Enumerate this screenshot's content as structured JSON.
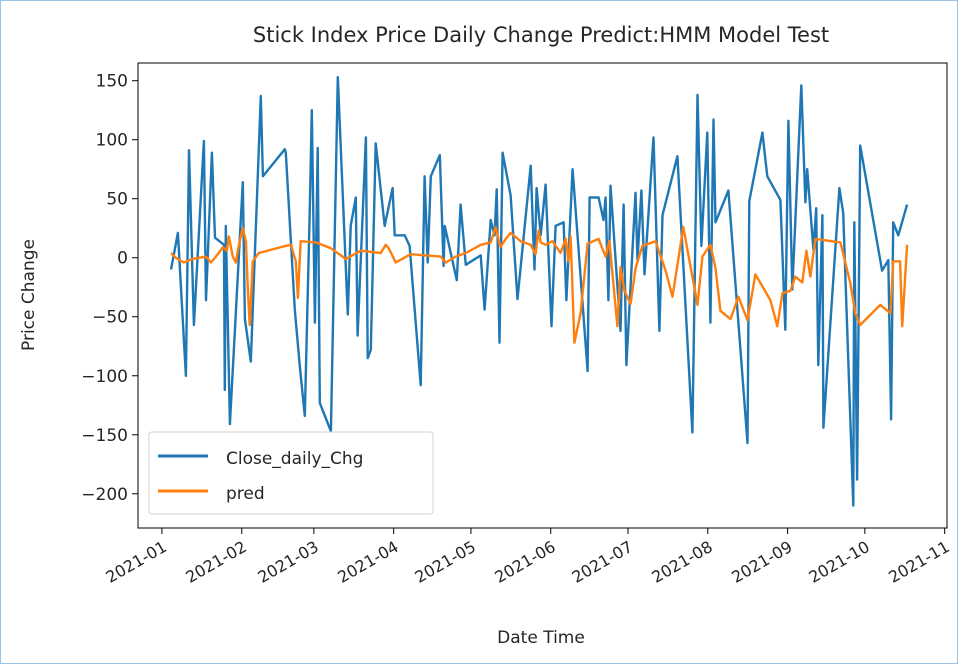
{
  "chart_data": {
    "type": "line",
    "title": "Stick Index Price Daily Change Predict:HMM Model Test",
    "xlabel": "Date Time",
    "ylabel": "Price Change",
    "x_units": "days since 2021-01-01",
    "xlim": [
      -9.3,
      304.9
    ],
    "ylim": [
      -229,
      165
    ],
    "x_ticks": [
      {
        "value": 0,
        "label": "2021-01"
      },
      {
        "value": 31,
        "label": "2021-02"
      },
      {
        "value": 59,
        "label": "2021-03"
      },
      {
        "value": 90,
        "label": "2021-04"
      },
      {
        "value": 120,
        "label": "2021-05"
      },
      {
        "value": 151,
        "label": "2021-06"
      },
      {
        "value": 181,
        "label": "2021-07"
      },
      {
        "value": 212,
        "label": "2021-08"
      },
      {
        "value": 243,
        "label": "2021-09"
      },
      {
        "value": 273,
        "label": "2021-10"
      },
      {
        "value": 304,
        "label": "2021-11"
      }
    ],
    "y_ticks": [
      {
        "value": 150,
        "label": "150"
      },
      {
        "value": 100,
        "label": "100"
      },
      {
        "value": 50,
        "label": "50"
      },
      {
        "value": 0,
        "label": "0"
      },
      {
        "value": -50,
        "label": "−50"
      },
      {
        "value": -100,
        "label": "−100"
      },
      {
        "value": -150,
        "label": "−150"
      },
      {
        "value": -200,
        "label": "−200"
      }
    ],
    "grid": false,
    "legend_position": "lower-left",
    "series": [
      {
        "name": "Close_daily_Chg",
        "color": "#1f77b4",
        "points": [
          [
            3.5,
            -10
          ],
          [
            6.2,
            21
          ],
          [
            9.3,
            -100
          ],
          [
            10.5,
            91
          ],
          [
            12.4,
            -57
          ],
          [
            16.3,
            99
          ],
          [
            17.1,
            -36
          ],
          [
            19.4,
            89
          ],
          [
            20.6,
            17
          ],
          [
            24.1,
            11
          ],
          [
            24.4,
            -112
          ],
          [
            24.8,
            27
          ],
          [
            26.4,
            -141
          ],
          [
            31.4,
            64
          ],
          [
            32.2,
            -52
          ],
          [
            34.5,
            -88
          ],
          [
            38.4,
            137
          ],
          [
            39.2,
            69
          ],
          [
            47.7,
            92
          ],
          [
            48.1,
            89
          ],
          [
            51.6,
            -44
          ],
          [
            53.5,
            -91
          ],
          [
            55.5,
            -134
          ],
          [
            57.4,
            38
          ],
          [
            58.2,
            125
          ],
          [
            59.4,
            -55
          ],
          [
            60.5,
            93
          ],
          [
            61.3,
            -123
          ],
          [
            65.6,
            -147
          ],
          [
            68.3,
            153
          ],
          [
            72.2,
            -48
          ],
          [
            73.3,
            27
          ],
          [
            75.3,
            51
          ],
          [
            76.0,
            -66
          ],
          [
            79.2,
            102
          ],
          [
            79.9,
            -85
          ],
          [
            81.1,
            -78
          ],
          [
            83.0,
            97
          ],
          [
            86.5,
            27
          ],
          [
            89.6,
            59
          ],
          [
            90.4,
            19
          ],
          [
            94.3,
            19
          ],
          [
            96.2,
            10
          ],
          [
            100.5,
            -108
          ],
          [
            102.0,
            69
          ],
          [
            103.2,
            -4
          ],
          [
            104.4,
            69
          ],
          [
            107.9,
            87
          ],
          [
            109.4,
            -7
          ],
          [
            109.8,
            27
          ],
          [
            114.5,
            -19
          ],
          [
            116.0,
            45
          ],
          [
            118.0,
            -6
          ],
          [
            123.8,
            2
          ],
          [
            125.3,
            -44
          ],
          [
            127.7,
            32
          ],
          [
            129.2,
            19
          ],
          [
            130.0,
            58
          ],
          [
            131.1,
            -72
          ],
          [
            132.3,
            89
          ],
          [
            135.4,
            53
          ],
          [
            138.1,
            -35
          ],
          [
            143.2,
            78
          ],
          [
            144.7,
            -10
          ],
          [
            145.5,
            59
          ],
          [
            147.1,
            19
          ],
          [
            149.0,
            62
          ],
          [
            151.3,
            -58
          ],
          [
            152.9,
            27
          ],
          [
            156.0,
            30
          ],
          [
            157.1,
            -36
          ],
          [
            159.5,
            75
          ],
          [
            165.3,
            -96
          ],
          [
            166.1,
            51
          ],
          [
            169.6,
            51
          ],
          [
            171.5,
            32
          ],
          [
            172.3,
            51
          ],
          [
            173.4,
            -36
          ],
          [
            174.2,
            61
          ],
          [
            178.1,
            -62
          ],
          [
            179.3,
            45
          ],
          [
            180.4,
            -91
          ],
          [
            183.9,
            55
          ],
          [
            184.7,
            -2
          ],
          [
            186.2,
            57
          ],
          [
            187.4,
            -14
          ],
          [
            190.9,
            102
          ],
          [
            193.2,
            -62
          ],
          [
            194.4,
            36
          ],
          [
            200.2,
            86
          ],
          [
            206.0,
            -148
          ],
          [
            208.0,
            138
          ],
          [
            209.5,
            10
          ],
          [
            211.8,
            106
          ],
          [
            213.0,
            -55
          ],
          [
            214.2,
            117
          ],
          [
            215.0,
            30
          ],
          [
            220.0,
            57
          ],
          [
            227.4,
            -157
          ],
          [
            228.1,
            48
          ],
          [
            233.2,
            106
          ],
          [
            235.1,
            69
          ],
          [
            240.2,
            49
          ],
          [
            242.1,
            -61
          ],
          [
            243.3,
            116
          ],
          [
            244.8,
            -27
          ],
          [
            248.3,
            146
          ],
          [
            249.9,
            47
          ],
          [
            250.6,
            75
          ],
          [
            253.0,
            7
          ],
          [
            254.1,
            42
          ],
          [
            254.9,
            -91
          ],
          [
            256.5,
            36
          ],
          [
            256.9,
            -144
          ],
          [
            263.1,
            59
          ],
          [
            264.6,
            38
          ],
          [
            268.5,
            -210
          ],
          [
            268.9,
            30
          ],
          [
            270.0,
            -188
          ],
          [
            271.2,
            95
          ],
          [
            279.7,
            -11
          ],
          [
            282.1,
            -2
          ],
          [
            283.2,
            -137
          ],
          [
            284.0,
            30
          ],
          [
            286.0,
            19
          ],
          [
            289.4,
            45
          ]
        ]
      },
      {
        "name": "pred",
        "color": "#ff7f0e",
        "points": [
          [
            3.5,
            4
          ],
          [
            5.4,
            0
          ],
          [
            8.5,
            -4
          ],
          [
            12,
            -1
          ],
          [
            17.1,
            1
          ],
          [
            19,
            -4
          ],
          [
            21,
            1
          ],
          [
            23.7,
            9
          ],
          [
            25.2,
            6
          ],
          [
            26,
            18
          ],
          [
            27.5,
            1
          ],
          [
            28.7,
            -4
          ],
          [
            29.9,
            11
          ],
          [
            31.4,
            25
          ],
          [
            32.6,
            14
          ],
          [
            33.4,
            -28
          ],
          [
            34.1,
            -57
          ],
          [
            35.3,
            -3
          ],
          [
            37.6,
            4
          ],
          [
            46.2,
            9
          ],
          [
            50.1,
            11
          ],
          [
            52,
            -3
          ],
          [
            52.8,
            -34
          ],
          [
            53.9,
            14
          ],
          [
            59.8,
            13
          ],
          [
            65.6,
            8
          ],
          [
            71.4,
            -1
          ],
          [
            77.2,
            6
          ],
          [
            85,
            4
          ],
          [
            86.9,
            11
          ],
          [
            88.1,
            8
          ],
          [
            90.8,
            -4
          ],
          [
            96.6,
            3
          ],
          [
            108.3,
            1
          ],
          [
            110.2,
            -4
          ],
          [
            114.1,
            1
          ],
          [
            118,
            4
          ],
          [
            123.8,
            11
          ],
          [
            127.7,
            13
          ],
          [
            129.6,
            26
          ],
          [
            131.5,
            9
          ],
          [
            133.5,
            16
          ],
          [
            135.4,
            21
          ],
          [
            139.3,
            14
          ],
          [
            143.2,
            11
          ],
          [
            145.1,
            3
          ],
          [
            146.3,
            23
          ],
          [
            147.1,
            13
          ],
          [
            149,
            11
          ],
          [
            151.7,
            14
          ],
          [
            154.8,
            4
          ],
          [
            156.8,
            16
          ],
          [
            157.9,
            -3
          ],
          [
            158.7,
            18
          ],
          [
            160.2,
            -72
          ],
          [
            162.6,
            -47
          ],
          [
            165.3,
            12
          ],
          [
            169.6,
            16
          ],
          [
            172.3,
            1
          ],
          [
            173.8,
            14
          ],
          [
            176.9,
            -58
          ],
          [
            178.1,
            -8
          ],
          [
            179.6,
            -28
          ],
          [
            182,
            -39
          ],
          [
            183.9,
            -9
          ],
          [
            186.6,
            10
          ],
          [
            191.7,
            14
          ],
          [
            195.6,
            -11
          ],
          [
            198.3,
            -33
          ],
          [
            202.5,
            26
          ],
          [
            208,
            -40
          ],
          [
            209.9,
            1
          ],
          [
            213,
            11
          ],
          [
            215,
            -9
          ],
          [
            216.9,
            -45
          ],
          [
            220.8,
            -52
          ],
          [
            223.9,
            -33
          ],
          [
            227.4,
            -53
          ],
          [
            230.5,
            -14
          ],
          [
            236.3,
            -36
          ],
          [
            239,
            -58
          ],
          [
            241,
            -30
          ],
          [
            244.1,
            -28
          ],
          [
            246,
            -16
          ],
          [
            248.7,
            -21
          ],
          [
            250.3,
            6
          ],
          [
            251.8,
            -16
          ],
          [
            253.8,
            16
          ],
          [
            263.5,
            13
          ],
          [
            267.3,
            -21
          ],
          [
            269.3,
            -47
          ],
          [
            271.2,
            -57
          ],
          [
            279,
            -40
          ],
          [
            282.9,
            -47
          ],
          [
            284,
            -3
          ],
          [
            286.7,
            -3
          ],
          [
            287.5,
            -58
          ],
          [
            289.4,
            11
          ]
        ]
      }
    ]
  }
}
